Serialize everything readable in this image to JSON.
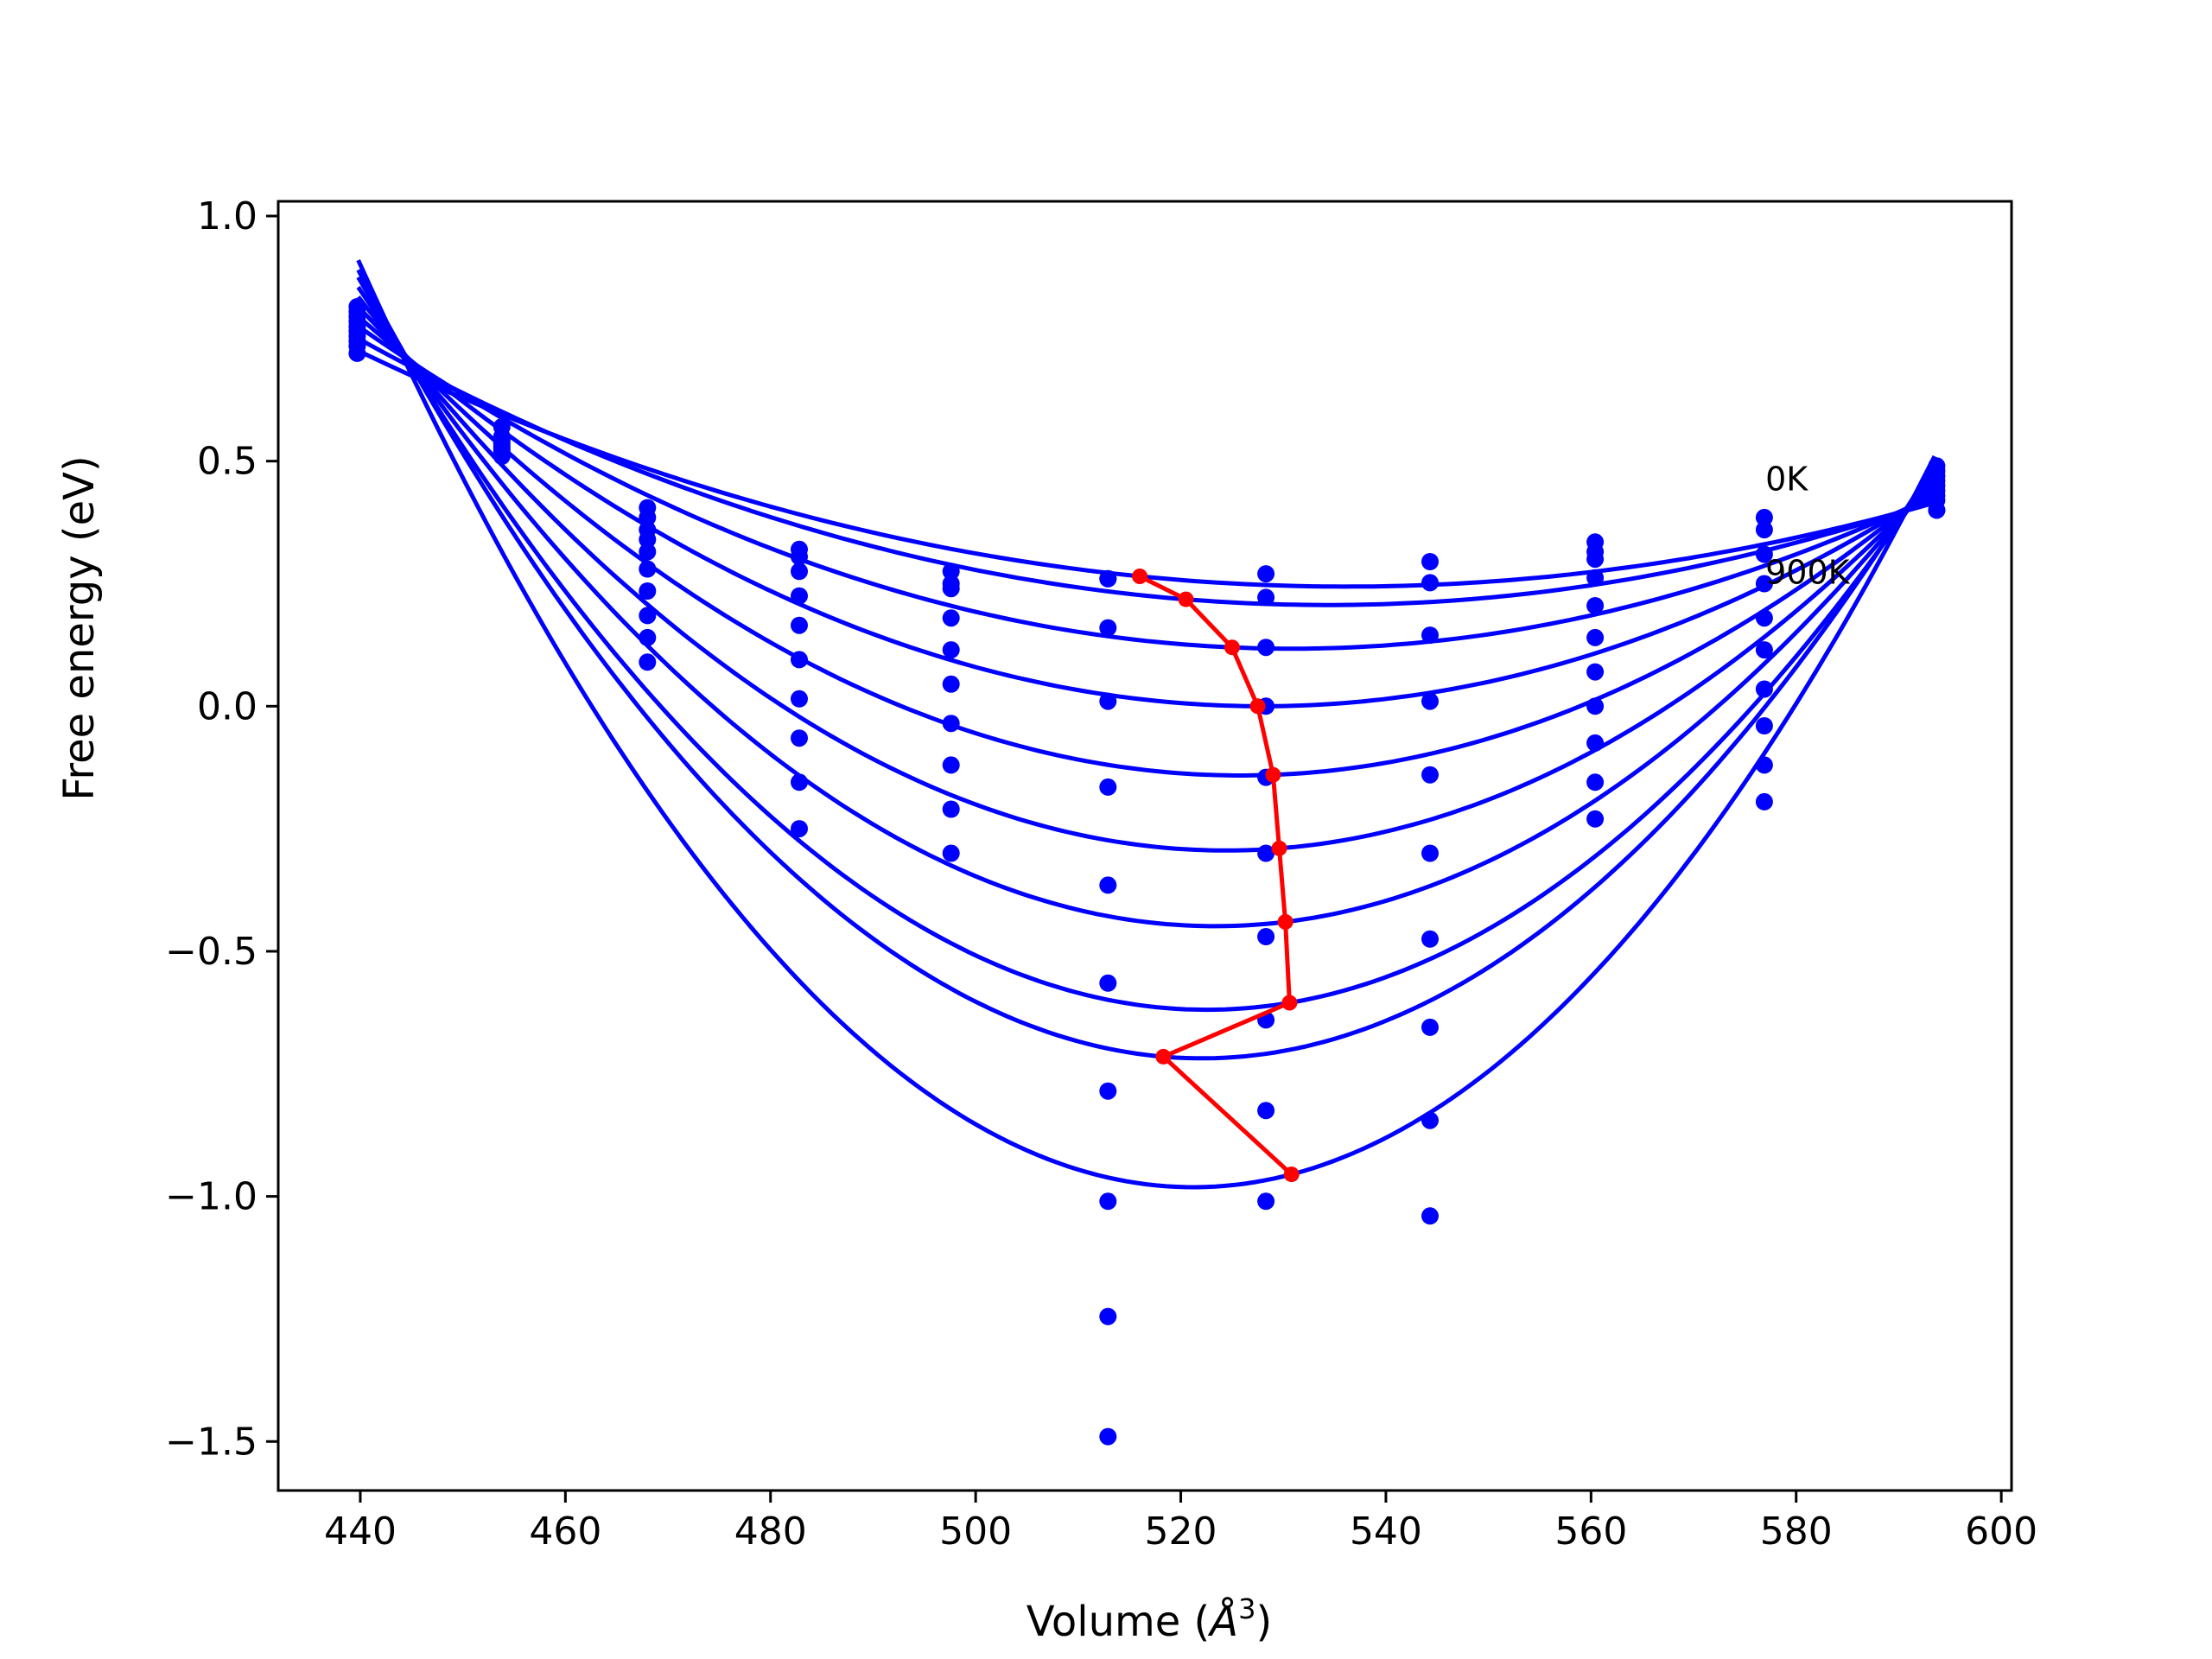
{
  "chart_data": {
    "type": "scatter",
    "xlabel": "Volume (",
    "xlabel_unit": "Å",
    "xlabel_exponent": "3",
    "xlabel_close": ")",
    "ylabel": "Free energy (eV)",
    "xlim": [
      432,
      601
    ],
    "ylim": [
      -1.6,
      1.03
    ],
    "x_ticks": [
      440,
      460,
      480,
      500,
      520,
      540,
      560,
      580,
      600
    ],
    "x_tick_labels": [
      "440",
      "460",
      "480",
      "500",
      "520",
      "540",
      "560",
      "580",
      "600"
    ],
    "y_ticks": [
      1.0,
      0.5,
      0.0,
      -0.5,
      -1.0,
      -1.5
    ],
    "y_tick_labels": [
      "1.0",
      "0.5",
      "0.0",
      "−0.5",
      "−1.0",
      "−1.5"
    ],
    "grid": false,
    "series_color": "#0000ff",
    "minimum_path_color": "#ff0000",
    "volumes": [
      439.7,
      453.8,
      468.0,
      482.8,
      497.6,
      512.9,
      528.3,
      544.3,
      560.4,
      576.9,
      593.7
    ],
    "curves": [
      {
        "fit": [
          439.8,
          0.725,
          516.0,
          0.265,
          593.5,
          0.415
        ],
        "points": [
          0.72,
          0.57,
          0.405,
          0.32,
          0.275,
          0.26,
          0.27,
          0.295,
          0.335,
          0.385,
          0.4
        ]
      },
      {
        "fit": [
          439.8,
          0.75,
          520.5,
          0.218,
          593.5,
          0.42
        ],
        "points": [
          0.735,
          0.55,
          0.385,
          0.305,
          0.25,
          0.26,
          0.222,
          0.252,
          0.315,
          0.36,
          0.4
        ]
      },
      {
        "fit": [
          439.8,
          0.775,
          525.0,
          0.12,
          593.5,
          0.43
        ],
        "points": [
          0.745,
          0.545,
          0.36,
          0.275,
          0.24,
          0.16,
          0.12,
          0.145,
          0.3,
          0.31,
          0.42
        ]
      },
      {
        "fit": [
          439.8,
          0.795,
          527.5,
          0.0,
          593.5,
          0.44
        ],
        "points": [
          0.755,
          0.54,
          0.34,
          0.225,
          0.18,
          0.01,
          0.0,
          0.01,
          0.262,
          0.25,
          0.43
        ]
      },
      {
        "fit": [
          439.8,
          0.815,
          529.0,
          -0.14,
          593.5,
          0.45
        ],
        "points": [
          0.765,
          0.535,
          0.315,
          0.165,
          0.115,
          -0.165,
          -0.145,
          -0.14,
          0.205,
          0.18,
          0.44
        ]
      },
      {
        "fit": [
          439.8,
          0.835,
          529.6,
          -0.29,
          593.5,
          0.46
        ],
        "points": [
          0.775,
          0.53,
          0.28,
          0.095,
          0.045,
          -0.365,
          -0.3,
          -0.3,
          0.14,
          0.115,
          0.45
        ]
      },
      {
        "fit": [
          439.8,
          0.855,
          530.2,
          -0.44,
          593.5,
          0.47
        ],
        "points": [
          0.785,
          0.525,
          0.235,
          0.015,
          -0.035,
          -0.565,
          -0.47,
          -0.475,
          0.07,
          0.035,
          0.46
        ]
      },
      {
        "fit": [
          439.8,
          0.875,
          530.6,
          -0.605,
          593.5,
          0.48
        ],
        "points": [
          0.795,
          0.52,
          0.185,
          -0.065,
          -0.12,
          -0.785,
          -0.64,
          -0.655,
          0.0,
          -0.04,
          0.47
        ]
      },
      {
        "fit": [
          439.8,
          0.89,
          518.3,
          -0.715,
          593.5,
          0.495
        ],
        "points": [
          0.805,
          0.515,
          0.14,
          -0.155,
          -0.21,
          -1.01,
          -0.825,
          -0.845,
          -0.075,
          -0.12,
          0.48
        ]
      },
      {
        "fit": [
          439.8,
          0.91,
          530.8,
          -0.955,
          593.5,
          0.51
        ],
        "points": [
          0.815,
          0.51,
          0.09,
          -0.25,
          -0.3,
          -1.245,
          -1.01,
          -1.04,
          -0.155,
          -0.195,
          0.49
        ]
      },
      {
        "points": [
          null,
          null,
          null,
          null,
          null,
          -1.49,
          null,
          null,
          -0.23,
          null,
          null
        ]
      }
    ],
    "minimum_path": {
      "x": [
        516.0,
        520.5,
        525.0,
        527.5,
        529.0,
        529.6,
        530.2,
        530.6,
        518.3,
        530.8
      ],
      "y": [
        0.265,
        0.218,
        0.12,
        0.0,
        -0.14,
        -0.29,
        -0.44,
        -0.605,
        -0.715,
        -0.955
      ]
    },
    "annotations": [
      {
        "text": "0K",
        "x": 577.0,
        "y": 0.44
      },
      {
        "text": "900K",
        "x": 577.0,
        "y": 0.25
      }
    ]
  }
}
